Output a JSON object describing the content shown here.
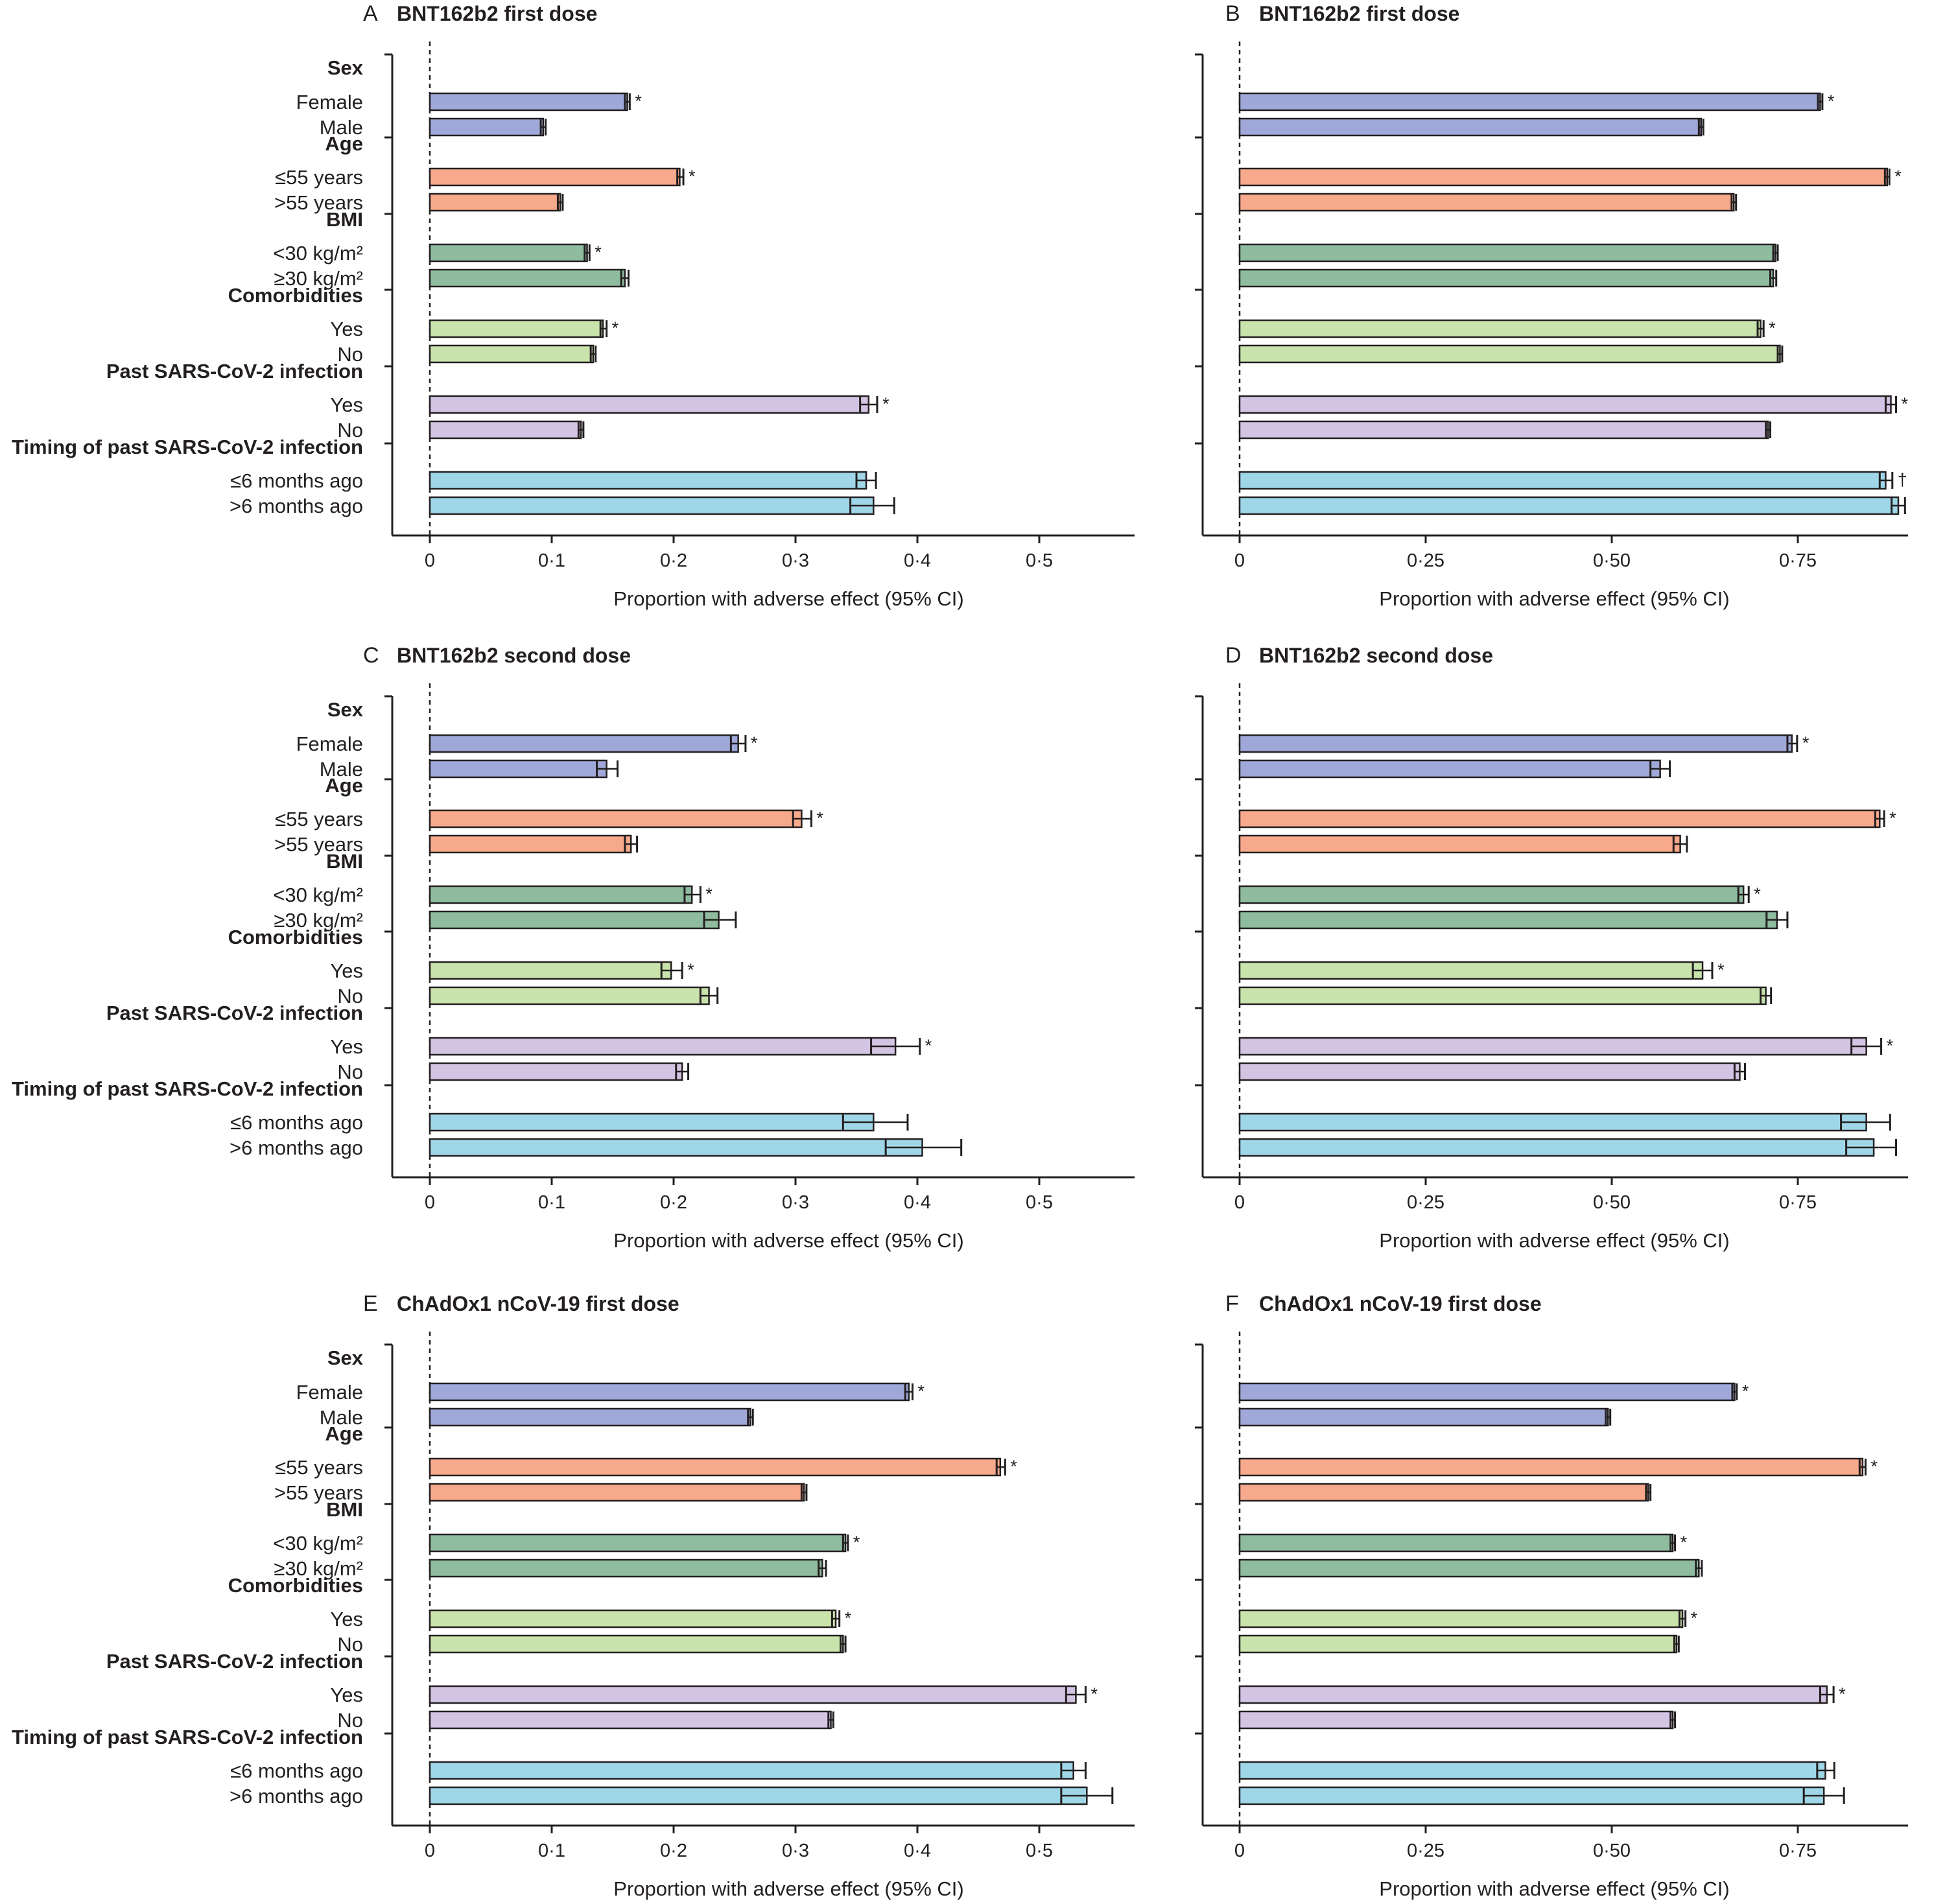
{
  "figure": {
    "groups": [
      {
        "header": "Sex",
        "rows": [
          "Female",
          "Male"
        ],
        "color": "#9fa8d8"
      },
      {
        "header": "Age",
        "rows": [
          "≤55 years",
          ">55 years"
        ],
        "color": "#f7a98b"
      },
      {
        "header": "BMI",
        "rows": [
          "<30 kg/m²",
          "≥30 kg/m²"
        ],
        "color": "#8fbc9f"
      },
      {
        "header": "Comorbidities",
        "rows": [
          "Yes",
          "No"
        ],
        "color": "#c9e3ac"
      },
      {
        "header": "Past SARS-CoV-2 infection",
        "rows": [
          "Yes",
          "No"
        ],
        "color": "#d4c4e4"
      },
      {
        "header": "Timing of past SARS-CoV-2 infection",
        "rows": [
          "≤6 months ago",
          ">6 months ago"
        ],
        "color": "#9fd7e8"
      }
    ],
    "x_label": "Proportion with adverse effect (95% CI)"
  },
  "chart_data": [
    {
      "panel": "A",
      "title": "BNT162b2 first dose",
      "type": "bar",
      "orientation": "horizontal",
      "xlim": [
        0,
        0.58
      ],
      "xticks": [
        0,
        0.1,
        0.2,
        0.3,
        0.4,
        0.5
      ],
      "xtick_labels": [
        "0",
        "0·1",
        "0·2",
        "0·3",
        "0·4",
        "0·5"
      ],
      "xlabel": "Proportion with adverse effect (95% CI)",
      "values": [
        0.162,
        0.093,
        0.205,
        0.107,
        0.129,
        0.16,
        0.142,
        0.134,
        0.36,
        0.124,
        0.358,
        0.364
      ],
      "ci_low": [
        0.16,
        0.091,
        0.203,
        0.105,
        0.127,
        0.157,
        0.14,
        0.132,
        0.353,
        0.122,
        0.35,
        0.345
      ],
      "ci_high": [
        0.164,
        0.095,
        0.208,
        0.109,
        0.131,
        0.163,
        0.145,
        0.136,
        0.367,
        0.126,
        0.366,
        0.381
      ],
      "marks": [
        "*",
        "",
        "*",
        "",
        "*",
        "",
        "*",
        "",
        "*",
        "",
        "",
        ""
      ]
    },
    {
      "panel": "B",
      "title": "BNT162b2 first dose",
      "type": "bar",
      "orientation": "horizontal",
      "xlim": [
        0,
        0.9
      ],
      "xticks": [
        0,
        0.25,
        0.5,
        0.75
      ],
      "xtick_labels": [
        "0",
        "0·25",
        "0·50",
        "0·75"
      ],
      "xlabel": "Proportion with adverse effect (95% CI)",
      "values": [
        0.78,
        0.62,
        0.87,
        0.664,
        0.72,
        0.717,
        0.7,
        0.726,
        0.875,
        0.71,
        0.868,
        0.885
      ],
      "ci_low": [
        0.777,
        0.617,
        0.867,
        0.661,
        0.717,
        0.713,
        0.696,
        0.723,
        0.868,
        0.707,
        0.86,
        0.876
      ],
      "ci_high": [
        0.783,
        0.623,
        0.873,
        0.667,
        0.723,
        0.721,
        0.704,
        0.729,
        0.882,
        0.713,
        0.877,
        0.894
      ],
      "marks": [
        "*",
        "",
        "*",
        "",
        "",
        "",
        "*",
        "",
        "*",
        "",
        "†",
        ""
      ]
    },
    {
      "panel": "C",
      "title": "BNT162b2 second dose",
      "type": "bar",
      "orientation": "horizontal",
      "xlim": [
        0,
        0.58
      ],
      "xticks": [
        0,
        0.1,
        0.2,
        0.3,
        0.4,
        0.5
      ],
      "xtick_labels": [
        "0",
        "0·1",
        "0·2",
        "0·3",
        "0·4",
        "0·5"
      ],
      "xlabel": "Proportion with adverse effect (95% CI)",
      "values": [
        0.253,
        0.145,
        0.305,
        0.165,
        0.215,
        0.237,
        0.198,
        0.229,
        0.382,
        0.207,
        0.364,
        0.404
      ],
      "ci_low": [
        0.247,
        0.137,
        0.298,
        0.16,
        0.209,
        0.225,
        0.19,
        0.222,
        0.362,
        0.202,
        0.339,
        0.374
      ],
      "ci_high": [
        0.259,
        0.154,
        0.313,
        0.17,
        0.222,
        0.251,
        0.207,
        0.236,
        0.402,
        0.212,
        0.392,
        0.436
      ],
      "marks": [
        "*",
        "",
        "*",
        "",
        "*",
        "",
        "*",
        "",
        "*",
        "",
        "",
        ""
      ]
    },
    {
      "panel": "D",
      "title": "BNT162b2 second dose",
      "type": "bar",
      "orientation": "horizontal",
      "xlim": [
        0,
        0.9
      ],
      "xticks": [
        0,
        0.25,
        0.5,
        0.75
      ],
      "xtick_labels": [
        "0",
        "0·25",
        "0·50",
        "0·75"
      ],
      "xlabel": "Proportion with adverse effect (95% CI)",
      "values": [
        0.742,
        0.565,
        0.86,
        0.592,
        0.677,
        0.722,
        0.622,
        0.707,
        0.842,
        0.672,
        0.842,
        0.852
      ],
      "ci_low": [
        0.736,
        0.552,
        0.854,
        0.583,
        0.67,
        0.708,
        0.609,
        0.7,
        0.822,
        0.665,
        0.808,
        0.815
      ],
      "ci_high": [
        0.749,
        0.578,
        0.866,
        0.601,
        0.684,
        0.736,
        0.635,
        0.714,
        0.862,
        0.679,
        0.874,
        0.882
      ],
      "marks": [
        "*",
        "",
        "*",
        "",
        "*",
        "",
        "*",
        "",
        "*",
        "",
        "",
        ""
      ]
    },
    {
      "panel": "E",
      "title": "ChAdOx1 nCoV-19 first dose",
      "type": "bar",
      "orientation": "horizontal",
      "xlim": [
        0,
        0.58
      ],
      "xticks": [
        0,
        0.1,
        0.2,
        0.3,
        0.4,
        0.5
      ],
      "xtick_labels": [
        "0",
        "0·1",
        "0·2",
        "0·3",
        "0·4",
        "0·5"
      ],
      "xlabel": "Proportion with adverse effect (95% CI)",
      "values": [
        0.393,
        0.263,
        0.468,
        0.307,
        0.341,
        0.322,
        0.333,
        0.339,
        0.53,
        0.329,
        0.528,
        0.539
      ],
      "ci_low": [
        0.39,
        0.261,
        0.465,
        0.305,
        0.339,
        0.319,
        0.33,
        0.337,
        0.522,
        0.327,
        0.518,
        0.518
      ],
      "ci_high": [
        0.396,
        0.265,
        0.472,
        0.309,
        0.343,
        0.325,
        0.336,
        0.341,
        0.538,
        0.331,
        0.538,
        0.56
      ],
      "marks": [
        "*",
        "",
        "*",
        "",
        "*",
        "",
        "*",
        "",
        "*",
        "",
        "",
        ""
      ]
    },
    {
      "panel": "F",
      "title": "ChAdOx1 nCoV-19 first dose",
      "type": "bar",
      "orientation": "horizontal",
      "xlim": [
        0,
        0.9
      ],
      "xticks": [
        0,
        0.25,
        0.5,
        0.75
      ],
      "xtick_labels": [
        "0",
        "0·25",
        "0·50",
        "0·75"
      ],
      "xlabel": "Proportion with adverse effect (95% CI)",
      "values": [
        0.665,
        0.495,
        0.837,
        0.549,
        0.582,
        0.617,
        0.595,
        0.587,
        0.789,
        0.582,
        0.787,
        0.785
      ],
      "ci_low": [
        0.662,
        0.492,
        0.833,
        0.546,
        0.579,
        0.613,
        0.591,
        0.584,
        0.78,
        0.579,
        0.776,
        0.758
      ],
      "ci_high": [
        0.668,
        0.498,
        0.841,
        0.552,
        0.585,
        0.621,
        0.599,
        0.59,
        0.798,
        0.585,
        0.799,
        0.812
      ],
      "marks": [
        "*",
        "",
        "*",
        "",
        "*",
        "",
        "*",
        "",
        "*",
        "",
        "",
        ""
      ]
    }
  ]
}
